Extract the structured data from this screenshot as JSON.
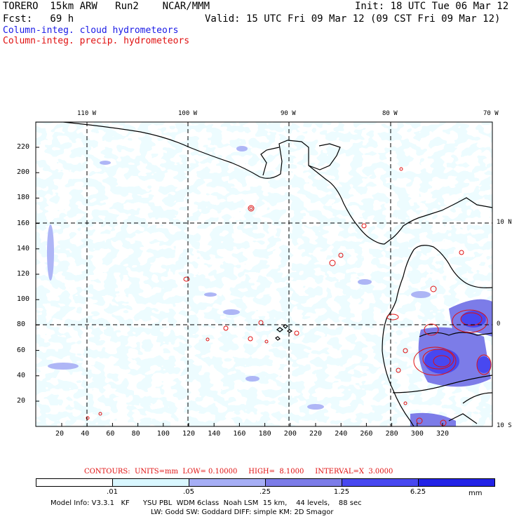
{
  "header": {
    "model": "TORERO  15km ARW   Run2    NCAR/MMM",
    "init": "Init: 18 UTC Tue 06 Mar 12",
    "forecast": "Fcst:   69 h",
    "valid": "Valid: 15 UTC Fri 09 Mar 12 (09 CST Fri 09 Mar 12)",
    "legend_cloud": "Column-integ. cloud hydrometeors",
    "legend_precip": "Column-integ. precip. hydrometeors"
  },
  "map": {
    "lon_labels": [
      "110 W",
      "100 W",
      "90 W",
      "80 W",
      "70 W"
    ],
    "lat_labels": [
      "10 N",
      "0",
      "10 S"
    ],
    "y_ticks": [
      "220",
      "200",
      "180",
      "160",
      "140",
      "120",
      "100",
      "80",
      "60",
      "40",
      "20"
    ],
    "x_ticks": [
      "20",
      "40",
      "60",
      "80",
      "100",
      "120",
      "140",
      "160",
      "180",
      "200",
      "220",
      "240",
      "260",
      "280",
      "300",
      "320"
    ]
  },
  "contours": {
    "caption": "CONTOURS:  UNITS=mm  LOW= 0.10000     HIGH=  8.1000     INTERVAL=X  3.0000",
    "color": "#e01010"
  },
  "colorbar": {
    "ticks": [
      ".01",
      ".05",
      ".25",
      "1.25",
      "6.25"
    ],
    "unit": "mm",
    "colors": [
      "#ffffff",
      "#d9f7ff",
      "#a6aef5",
      "#7c7ce8",
      "#4848f0",
      "#2222e6"
    ]
  },
  "model_info": {
    "line1": "Model Info: V3.3.1   KF      YSU PBL  WDM 6class  Noah LSM  15 km,    44 levels,    88 sec",
    "line2": "LW: Godd SW: Goddard DIFF: simple KM: 2D Smagor"
  },
  "colors": {
    "cloud_light": "#d9f7ff",
    "cloud_mid": "#a6aef5",
    "cloud_dark": "#7c7ce8",
    "precip_heavy": "#4848f0"
  }
}
